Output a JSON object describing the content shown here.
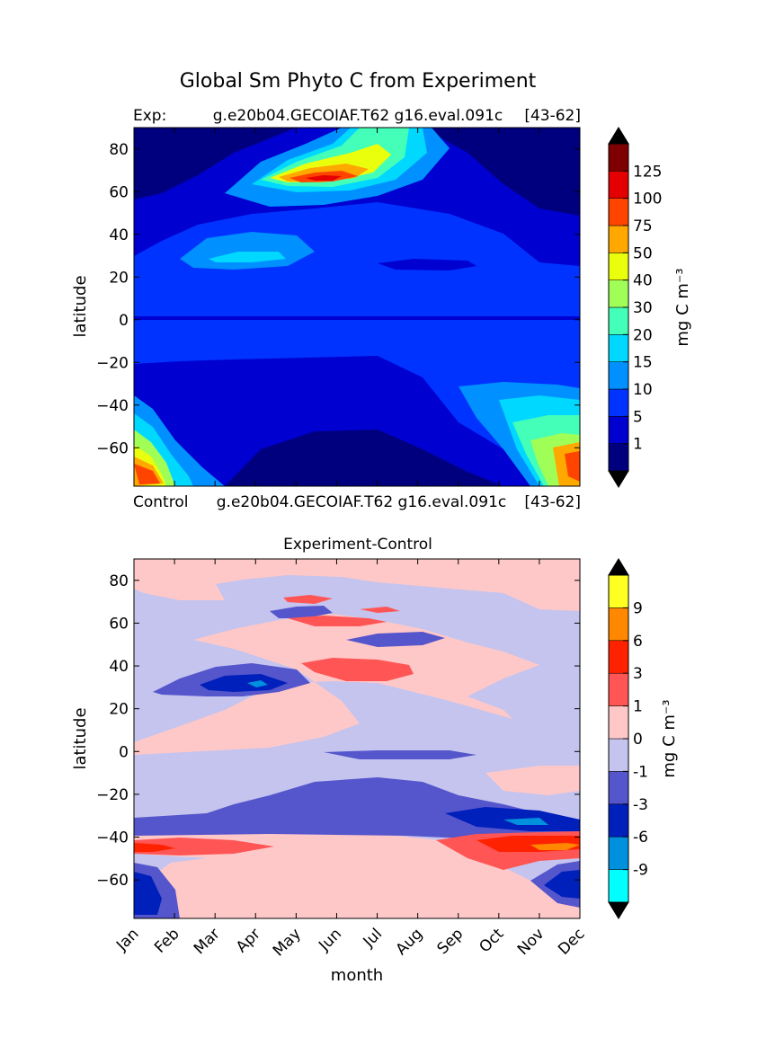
{
  "figure": {
    "suptitle": "Global Sm Phyto C from Experiment"
  },
  "chart_data": [
    {
      "type": "heatmap",
      "panel": "top",
      "title_left": "Exp:",
      "title_center": "g.e20b04.GECOIAF.T62 g16.eval.091c",
      "title_right": "[43-62]",
      "xlabel": "",
      "ylabel": "latitude",
      "ylim": [
        -78,
        90
      ],
      "y_ticks": [
        "80",
        "60",
        "40",
        "20",
        "0",
        "−20",
        "−40",
        "−60"
      ],
      "y_tick_values": [
        80,
        60,
        40,
        20,
        0,
        -20,
        -40,
        -60
      ],
      "x_tick_values": [
        0,
        1,
        2,
        3,
        4,
        5,
        6,
        7,
        8,
        9,
        10,
        11
      ],
      "colorbar": {
        "label": "mg C m⁻³",
        "levels": [
          "1",
          "5",
          "10",
          "15",
          "20",
          "30",
          "40",
          "50",
          "75",
          "100",
          "125"
        ],
        "colors": [
          "#00007f",
          "#0000d0",
          "#0033ff",
          "#0090ff",
          "#00d8ff",
          "#44ffb8",
          "#a0ff56",
          "#eaff0c",
          "#ffa800",
          "#ff4400",
          "#e40000",
          "#7f0000"
        ],
        "extend": "both"
      }
    },
    {
      "type": "heatmap",
      "panel": "bottom",
      "caption_left": "Control",
      "caption_center": "g.e20b04.GECOIAF.T62 g16.eval.091c",
      "caption_right": "[43-62]",
      "title": "Experiment-Control",
      "xlabel": "month",
      "ylabel": "latitude",
      "ylim": [
        -78,
        90
      ],
      "categories": [
        "Jan",
        "Feb",
        "Mar",
        "Apr",
        "May",
        "Jun",
        "Jul",
        "Aug",
        "Sep",
        "Oct",
        "Nov",
        "Dec"
      ],
      "y_ticks": [
        "80",
        "60",
        "40",
        "20",
        "0",
        "−20",
        "−40",
        "−60"
      ],
      "y_tick_values": [
        80,
        60,
        40,
        20,
        0,
        -20,
        -40,
        -60
      ],
      "colorbar": {
        "label": "mg C m⁻³",
        "levels": [
          "-9",
          "-6",
          "-3",
          "-1",
          "0",
          "1",
          "3",
          "6",
          "9"
        ],
        "colors": [
          "#00ffff",
          "#0090dd",
          "#0020bb",
          "#5555cc",
          "#c4c4ee",
          "#ffc8c8",
          "#ff5555",
          "#ff2200",
          "#ff8800",
          "#ffff22"
        ],
        "extend": "both"
      }
    }
  ]
}
